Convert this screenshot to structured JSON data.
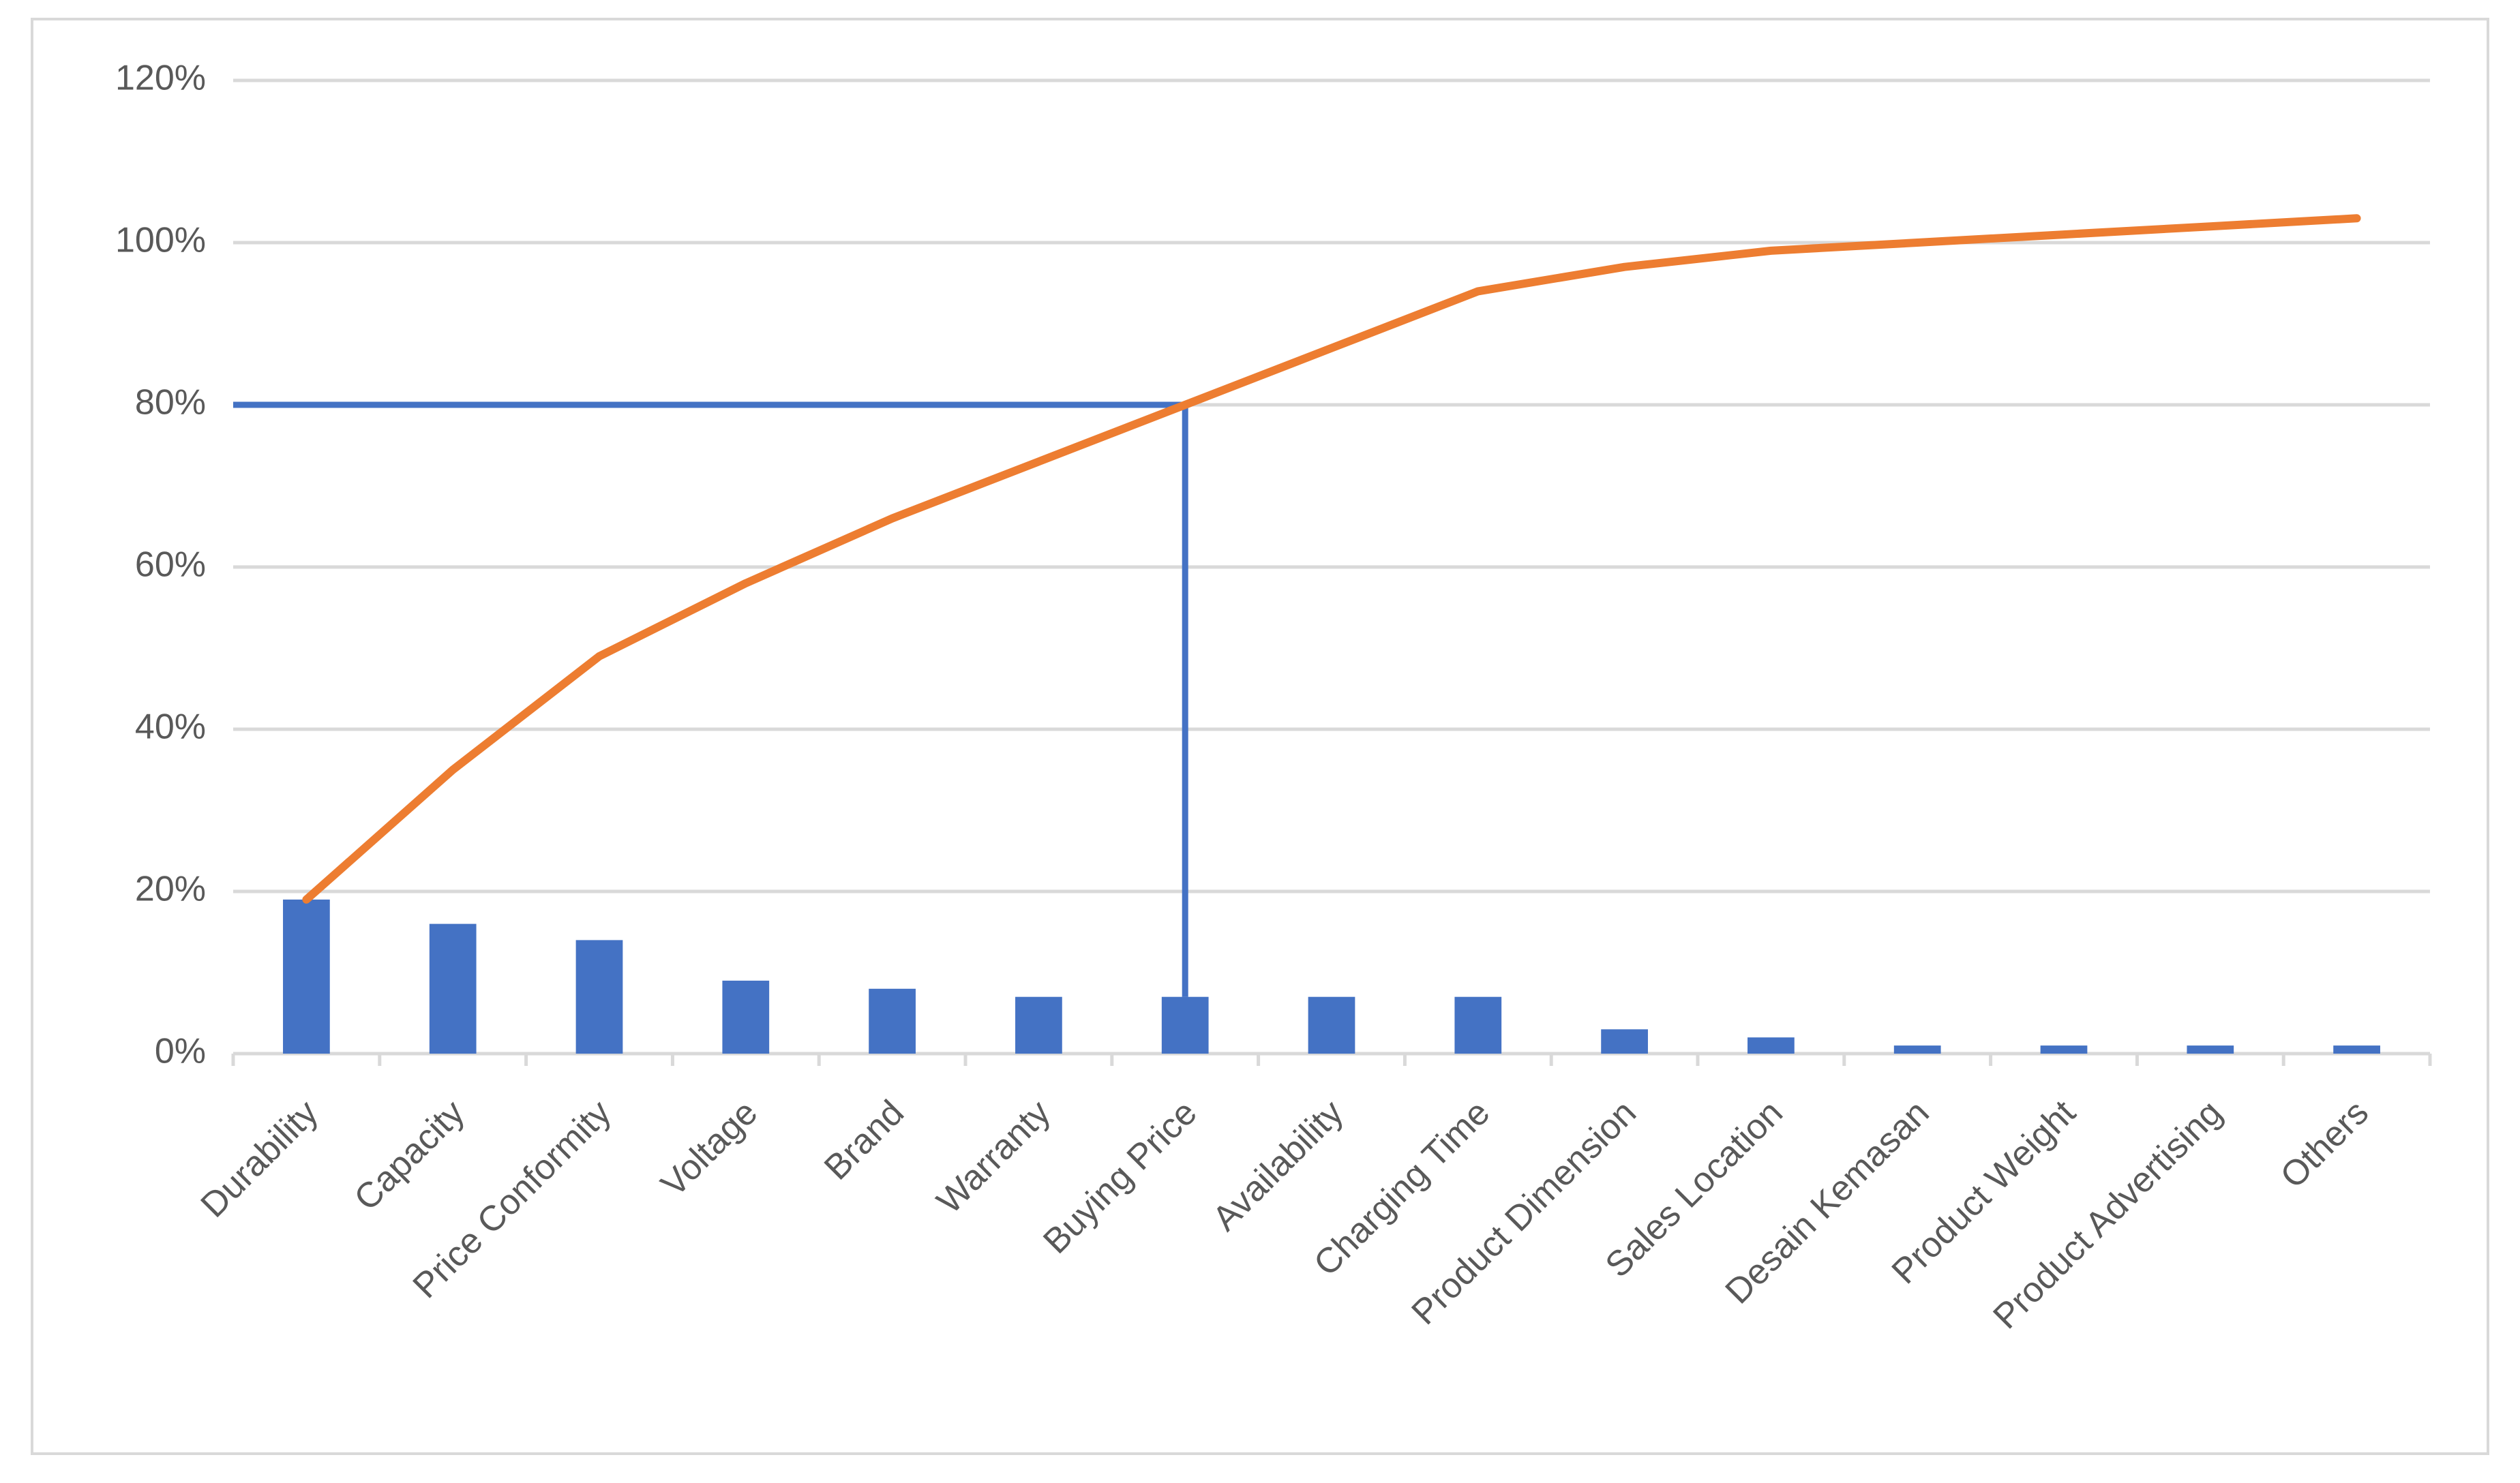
{
  "chart_data": {
    "type": "pareto",
    "categories": [
      "Durability",
      "Capacity",
      "Price Conformity",
      "Voltage",
      "Brand",
      "Warranty",
      "Buying Price",
      "Availability",
      "Charging Time",
      "Product Dimension",
      "Sales Location",
      "Desain Kemasan",
      "Product Weight",
      "Product Advertising",
      "Others"
    ],
    "series": [
      {
        "kind": "bar",
        "color": "#4472c4",
        "values": [
          19,
          16,
          14,
          9,
          8,
          7,
          7,
          7,
          7,
          3,
          2,
          1,
          1,
          1,
          1
        ]
      },
      {
        "kind": "line",
        "color": "#ed7d31",
        "values": [
          19,
          35,
          49,
          58,
          66,
          73,
          80,
          87,
          94,
          97,
          99,
          100,
          101,
          102,
          103
        ]
      }
    ],
    "reference_line": {
      "y": 80,
      "x": "Buying Price",
      "color": "#4472c4"
    },
    "ylim": [
      0,
      120
    ],
    "yticks": [
      {
        "value": 0,
        "label": "0%"
      },
      {
        "value": 20,
        "label": "20%"
      },
      {
        "value": 40,
        "label": "40%"
      },
      {
        "value": 60,
        "label": "60%"
      },
      {
        "value": 80,
        "label": "80%"
      },
      {
        "value": 100,
        "label": "100%"
      },
      {
        "value": 120,
        "label": "120%"
      }
    ],
    "grid": true
  }
}
